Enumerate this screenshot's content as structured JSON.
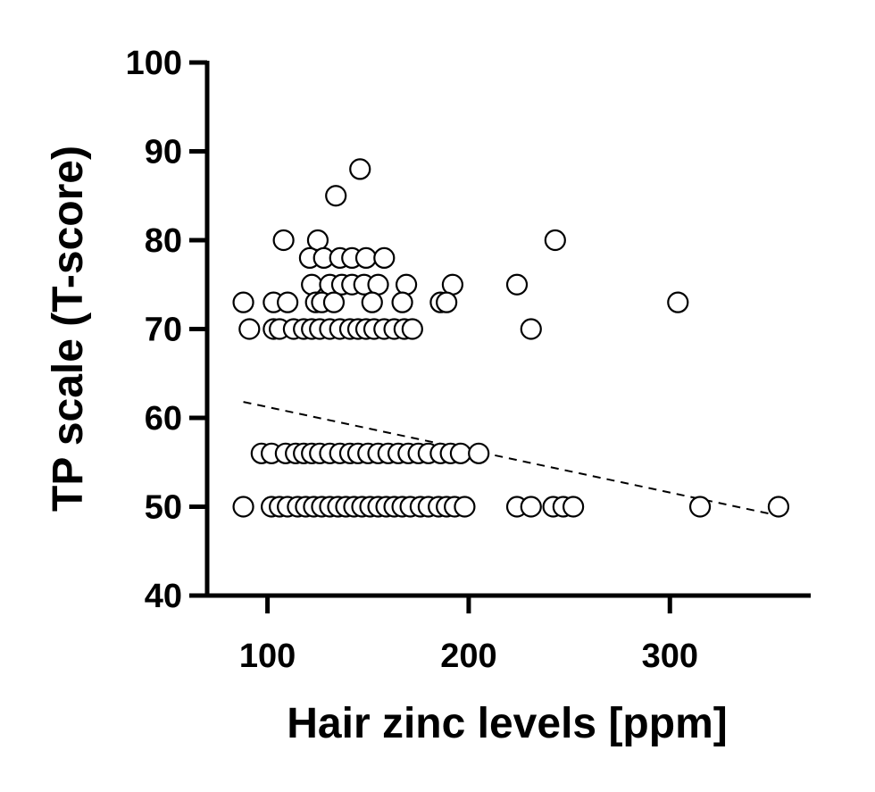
{
  "chart_data": {
    "type": "scatter",
    "xlabel": "Hair zinc levels [ppm]",
    "ylabel": "TP scale (T-score)",
    "xlim": [
      70,
      370
    ],
    "ylim": [
      40,
      100
    ],
    "xticks": [
      100,
      200,
      300
    ],
    "yticks": [
      40,
      50,
      60,
      70,
      80,
      90,
      100
    ],
    "x_tick_labels": [
      "100",
      "200",
      "300"
    ],
    "y_tick_labels": [
      "40",
      "50",
      "60",
      "70",
      "80",
      "90",
      "100"
    ],
    "grid": false,
    "marker": "open-circle",
    "colors": {
      "axis": "#000000",
      "marker_fill": "#ffffff",
      "marker_edge": "#000000",
      "trend": "#000000"
    },
    "points": [
      {
        "x": 146,
        "y": 88
      },
      {
        "x": 134,
        "y": 85
      },
      {
        "x": 108,
        "y": 80
      },
      {
        "x": 125,
        "y": 80
      },
      {
        "x": 243,
        "y": 80
      },
      {
        "x": 121,
        "y": 78
      },
      {
        "x": 128,
        "y": 78
      },
      {
        "x": 136,
        "y": 78
      },
      {
        "x": 142,
        "y": 78
      },
      {
        "x": 149,
        "y": 78
      },
      {
        "x": 158,
        "y": 78
      },
      {
        "x": 122,
        "y": 75
      },
      {
        "x": 131,
        "y": 75
      },
      {
        "x": 137,
        "y": 75
      },
      {
        "x": 142,
        "y": 75
      },
      {
        "x": 148,
        "y": 75
      },
      {
        "x": 155,
        "y": 75
      },
      {
        "x": 169,
        "y": 75
      },
      {
        "x": 192,
        "y": 75
      },
      {
        "x": 224,
        "y": 75
      },
      {
        "x": 88,
        "y": 73
      },
      {
        "x": 103,
        "y": 73
      },
      {
        "x": 110,
        "y": 73
      },
      {
        "x": 124,
        "y": 73
      },
      {
        "x": 127,
        "y": 73
      },
      {
        "x": 133,
        "y": 73
      },
      {
        "x": 152,
        "y": 73
      },
      {
        "x": 167,
        "y": 73
      },
      {
        "x": 186,
        "y": 73
      },
      {
        "x": 189,
        "y": 73
      },
      {
        "x": 304,
        "y": 73
      },
      {
        "x": 91,
        "y": 70
      },
      {
        "x": 103,
        "y": 70
      },
      {
        "x": 106,
        "y": 70
      },
      {
        "x": 113,
        "y": 70
      },
      {
        "x": 118,
        "y": 70
      },
      {
        "x": 122,
        "y": 70
      },
      {
        "x": 126,
        "y": 70
      },
      {
        "x": 131,
        "y": 70
      },
      {
        "x": 136,
        "y": 70
      },
      {
        "x": 141,
        "y": 70
      },
      {
        "x": 145,
        "y": 70
      },
      {
        "x": 149,
        "y": 70
      },
      {
        "x": 153,
        "y": 70
      },
      {
        "x": 158,
        "y": 70
      },
      {
        "x": 163,
        "y": 70
      },
      {
        "x": 168,
        "y": 70
      },
      {
        "x": 172,
        "y": 70
      },
      {
        "x": 231,
        "y": 70
      },
      {
        "x": 97,
        "y": 56
      },
      {
        "x": 102,
        "y": 56
      },
      {
        "x": 109,
        "y": 56
      },
      {
        "x": 114,
        "y": 56
      },
      {
        "x": 118,
        "y": 56
      },
      {
        "x": 122,
        "y": 56
      },
      {
        "x": 126,
        "y": 56
      },
      {
        "x": 131,
        "y": 56
      },
      {
        "x": 136,
        "y": 56
      },
      {
        "x": 141,
        "y": 56
      },
      {
        "x": 145,
        "y": 56
      },
      {
        "x": 150,
        "y": 56
      },
      {
        "x": 155,
        "y": 56
      },
      {
        "x": 160,
        "y": 56
      },
      {
        "x": 165,
        "y": 56
      },
      {
        "x": 170,
        "y": 56
      },
      {
        "x": 175,
        "y": 56
      },
      {
        "x": 180,
        "y": 56
      },
      {
        "x": 186,
        "y": 56
      },
      {
        "x": 191,
        "y": 56
      },
      {
        "x": 196,
        "y": 56
      },
      {
        "x": 205,
        "y": 56
      },
      {
        "x": 88,
        "y": 50
      },
      {
        "x": 102,
        "y": 50
      },
      {
        "x": 106,
        "y": 50
      },
      {
        "x": 110,
        "y": 50
      },
      {
        "x": 115,
        "y": 50
      },
      {
        "x": 119,
        "y": 50
      },
      {
        "x": 123,
        "y": 50
      },
      {
        "x": 127,
        "y": 50
      },
      {
        "x": 131,
        "y": 50
      },
      {
        "x": 135,
        "y": 50
      },
      {
        "x": 139,
        "y": 50
      },
      {
        "x": 143,
        "y": 50
      },
      {
        "x": 147,
        "y": 50
      },
      {
        "x": 151,
        "y": 50
      },
      {
        "x": 155,
        "y": 50
      },
      {
        "x": 159,
        "y": 50
      },
      {
        "x": 163,
        "y": 50
      },
      {
        "x": 167,
        "y": 50
      },
      {
        "x": 171,
        "y": 50
      },
      {
        "x": 176,
        "y": 50
      },
      {
        "x": 180,
        "y": 50
      },
      {
        "x": 185,
        "y": 50
      },
      {
        "x": 189,
        "y": 50
      },
      {
        "x": 193,
        "y": 50
      },
      {
        "x": 198,
        "y": 50
      },
      {
        "x": 224,
        "y": 50
      },
      {
        "x": 231,
        "y": 50
      },
      {
        "x": 242,
        "y": 50
      },
      {
        "x": 247,
        "y": 50
      },
      {
        "x": 252,
        "y": 50
      },
      {
        "x": 315,
        "y": 50
      },
      {
        "x": 354,
        "y": 50
      }
    ],
    "trend_line": {
      "style": "dashed",
      "x": [
        88,
        354
      ],
      "y": [
        61.8,
        49.0
      ]
    }
  }
}
